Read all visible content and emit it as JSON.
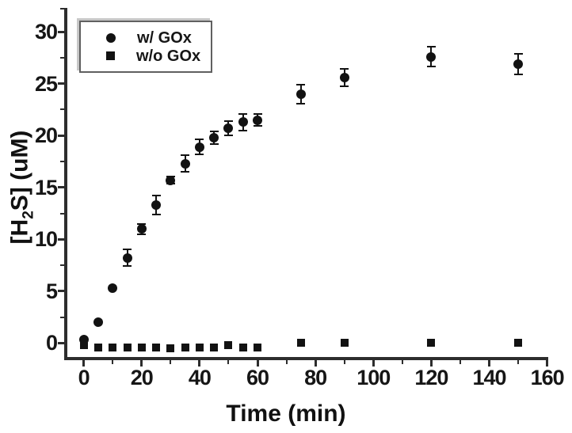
{
  "chart_data": {
    "type": "scatter",
    "title": "",
    "xlabel": "Time (min)",
    "ylabel": "[H2S] (uM)",
    "ylabel_parts": {
      "pre": "[H",
      "sub": "2",
      "post": "S] (uM)"
    },
    "xlim": [
      -6.2,
      160.1
    ],
    "ylim": [
      -1.5,
      32.3
    ],
    "grid": false,
    "legend_position": "top-left-inside",
    "x_major_ticks": [
      0,
      20,
      40,
      60,
      80,
      100,
      120,
      140,
      160
    ],
    "x_minor_ticks": [
      10,
      30,
      50,
      70,
      90,
      110,
      130,
      150
    ],
    "y_major_ticks": [
      0,
      5,
      10,
      15,
      20,
      25,
      30
    ],
    "y_minor_ticks": [
      2.5,
      7.5,
      12.5,
      17.5,
      22.5,
      27.5,
      32.2
    ],
    "series": [
      {
        "name": "w/ GOx",
        "marker": "circle",
        "x": [
          0,
          5,
          10,
          15,
          20,
          25,
          30,
          35,
          40,
          45,
          50,
          55,
          60,
          75,
          90,
          120,
          150
        ],
        "y": [
          0.3,
          2.0,
          5.3,
          8.2,
          11.0,
          13.3,
          15.7,
          17.3,
          18.9,
          19.8,
          20.7,
          21.3,
          21.5,
          24.0,
          25.6,
          27.6,
          26.9
        ],
        "yerr": [
          0.2,
          0.2,
          0.2,
          0.8,
          0.5,
          0.9,
          0.35,
          0.8,
          0.7,
          0.6,
          0.7,
          0.8,
          0.6,
          0.9,
          0.85,
          0.95,
          1.0
        ]
      },
      {
        "name": "w/o GOx",
        "marker": "square",
        "x": [
          0,
          5,
          10,
          15,
          20,
          25,
          30,
          35,
          40,
          45,
          50,
          55,
          60,
          75,
          90,
          120,
          150
        ],
        "y": [
          -0.2,
          -0.45,
          -0.45,
          -0.45,
          -0.45,
          -0.45,
          -0.5,
          -0.45,
          -0.45,
          -0.45,
          -0.2,
          -0.45,
          -0.4,
          0.05,
          0.0,
          0.05,
          0.0
        ],
        "yerr": [
          0,
          0,
          0,
          0,
          0,
          0,
          0,
          0,
          0,
          0,
          0,
          0,
          0,
          0,
          0,
          0,
          0
        ]
      }
    ]
  }
}
